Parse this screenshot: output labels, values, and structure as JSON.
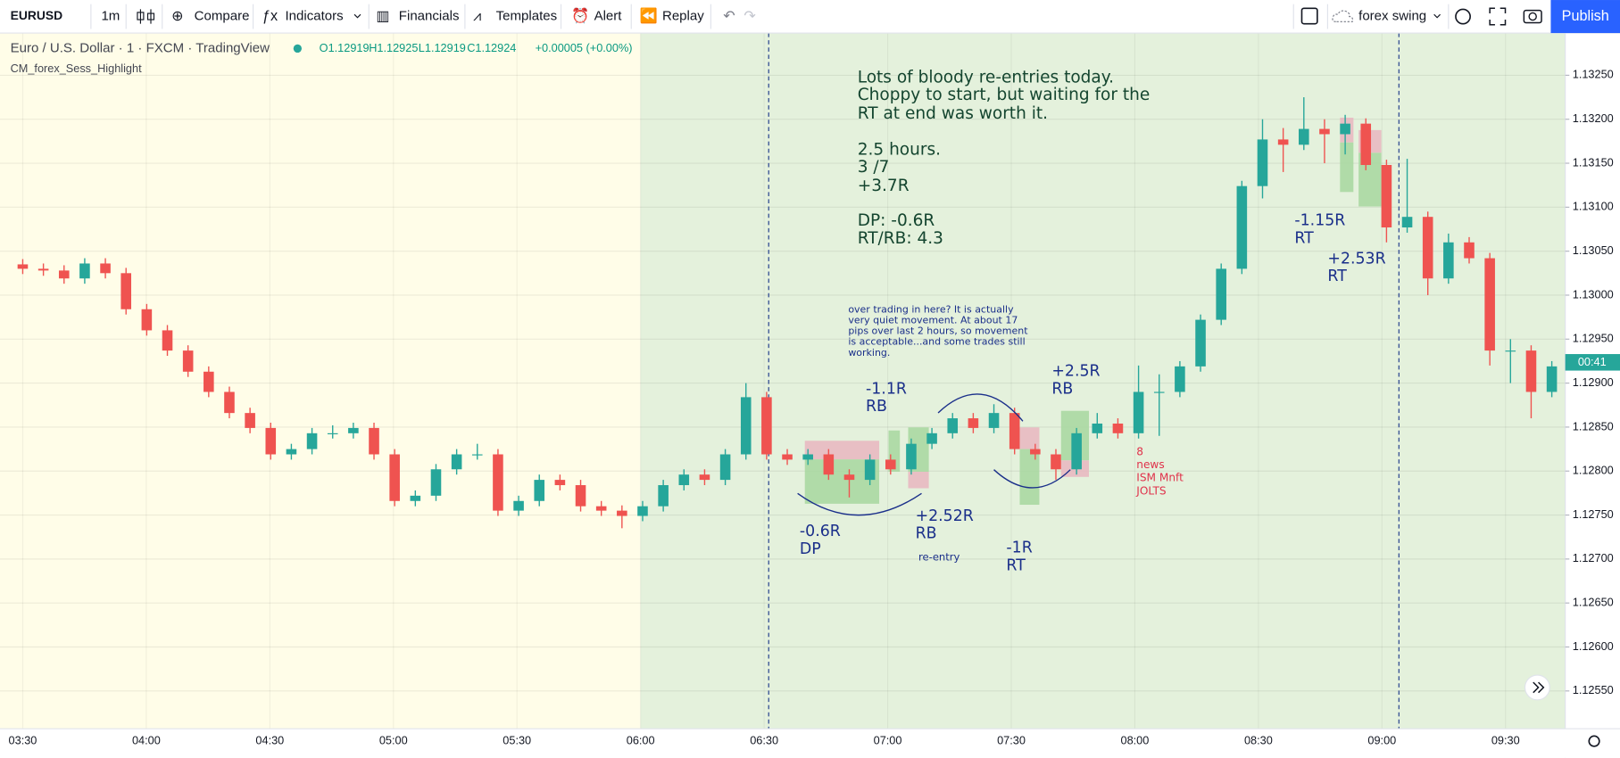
{
  "toolbar": {
    "symbol": "EURUSD",
    "interval": "1m",
    "buttons": [
      "Compare",
      "Indicators",
      "Financials",
      "Templates",
      "Alert",
      "Replay"
    ],
    "layout": "forex swing",
    "publish": "Publish"
  },
  "legend": {
    "title": "Euro / U.S. Dollar · 1 · FXCM · TradingView",
    "ohlc": [
      "O1.12919",
      "H1.12925",
      "L1.12919",
      "C1.12924",
      "+0.00005 (+0.00%)"
    ],
    "indicator": "CM_forex_Sess_Highlight"
  },
  "chart_data": {
    "type": "candlestick",
    "up_color": "#26a69a",
    "down_color": "#ef5350",
    "candles": {
      "open": [
        1.13035,
        1.1303,
        1.13028,
        1.13019,
        1.13036,
        1.13025,
        1.12984,
        1.1296,
        1.12937,
        1.12913,
        1.1289,
        1.12866,
        1.12849,
        1.12819,
        1.12825,
        1.12843,
        1.12843,
        1.12849,
        1.12819,
        1.12766,
        1.12772,
        1.12802,
        1.12819,
        1.12819,
        1.12755,
        1.12766,
        1.1279,
        1.12784,
        1.1276,
        1.12755,
        1.12749,
        1.1276,
        1.12784,
        1.12796,
        1.1279,
        1.12819,
        1.12884,
        1.12819,
        1.12813,
        1.12819,
        1.12796,
        1.1279,
        1.12813,
        1.12802,
        1.12831,
        1.12843,
        1.1286,
        1.12849,
        1.12866,
        1.12825,
        1.12819,
        1.12802,
        1.12843,
        1.12854,
        1.12843,
        1.1289,
        1.1289,
        1.12919,
        1.12972,
        1.1303,
        1.13124,
        1.13177,
        1.13171,
        1.13189,
        1.13183,
        1.13195,
        1.13148,
        1.13077,
        1.13089,
        1.13019,
        1.1306,
        1.13042,
        1.12937,
        1.12937,
        1.1289
      ],
      "high": [
        1.13041,
        1.13036,
        1.13034,
        1.13042,
        1.13042,
        1.13031,
        1.1299,
        1.12966,
        1.12943,
        1.12919,
        1.12896,
        1.12872,
        1.12855,
        1.12831,
        1.12849,
        1.12852,
        1.12855,
        1.12855,
        1.12825,
        1.12778,
        1.12808,
        1.12825,
        1.12831,
        1.12825,
        1.12772,
        1.12796,
        1.12796,
        1.1279,
        1.12766,
        1.12761,
        1.12766,
        1.1279,
        1.12802,
        1.12802,
        1.12825,
        1.129,
        1.1289,
        1.12825,
        1.12825,
        1.12825,
        1.12802,
        1.12819,
        1.12819,
        1.12837,
        1.12849,
        1.12866,
        1.12866,
        1.12876,
        1.12872,
        1.12831,
        1.12825,
        1.12849,
        1.12866,
        1.1286,
        1.1292,
        1.1291,
        1.12925,
        1.12978,
        1.13036,
        1.1313,
        1.132,
        1.1319,
        1.13225,
        1.132,
        1.13205,
        1.13201,
        1.13154,
        1.13155,
        1.13095,
        1.1307,
        1.13066,
        1.13048,
        1.1295,
        1.12943,
        1.12925
      ],
      "low": [
        1.13024,
        1.13022,
        1.13013,
        1.13013,
        1.13019,
        1.12978,
        1.12954,
        1.12931,
        1.12907,
        1.12884,
        1.1286,
        1.12843,
        1.12813,
        1.12813,
        1.12819,
        1.12837,
        1.12837,
        1.12813,
        1.1276,
        1.1276,
        1.12766,
        1.12796,
        1.12813,
        1.12749,
        1.12749,
        1.1276,
        1.12778,
        1.12754,
        1.12749,
        1.12735,
        1.12743,
        1.12754,
        1.12778,
        1.12784,
        1.12784,
        1.12813,
        1.12813,
        1.12807,
        1.12807,
        1.1279,
        1.1277,
        1.12784,
        1.12796,
        1.12796,
        1.12825,
        1.12837,
        1.12843,
        1.12843,
        1.12819,
        1.12813,
        1.1279,
        1.12796,
        1.12837,
        1.12837,
        1.12837,
        1.1284,
        1.12884,
        1.12913,
        1.12966,
        1.13024,
        1.1311,
        1.1314,
        1.13165,
        1.1315,
        1.1316,
        1.13142,
        1.1306,
        1.13071,
        1.13,
        1.13013,
        1.13036,
        1.1292,
        1.129,
        1.1286,
        1.12884
      ],
      "close": [
        1.1303,
        1.13028,
        1.13019,
        1.13036,
        1.13025,
        1.12984,
        1.1296,
        1.12937,
        1.12913,
        1.1289,
        1.12866,
        1.12849,
        1.12819,
        1.12825,
        1.12843,
        1.12843,
        1.12849,
        1.12819,
        1.12766,
        1.12772,
        1.12802,
        1.12819,
        1.12819,
        1.12755,
        1.12766,
        1.1279,
        1.12784,
        1.1276,
        1.12755,
        1.12749,
        1.1276,
        1.12784,
        1.12796,
        1.1279,
        1.12819,
        1.12884,
        1.12819,
        1.12813,
        1.12819,
        1.12796,
        1.1279,
        1.12813,
        1.12802,
        1.12831,
        1.12843,
        1.1286,
        1.12849,
        1.12866,
        1.12825,
        1.12819,
        1.12802,
        1.12843,
        1.12854,
        1.12843,
        1.1289,
        1.1289,
        1.12919,
        1.12972,
        1.1303,
        1.13124,
        1.13177,
        1.13171,
        1.13189,
        1.13183,
        1.13195,
        1.13148,
        1.13077,
        1.13089,
        1.13019,
        1.1306,
        1.13042,
        1.12937,
        1.12937,
        1.1289,
        1.12919
      ]
    },
    "ylim": [
      1.12507,
      1.13298
    ],
    "yticks": [
      {
        "value": 1.1325,
        "label": "1.13250"
      },
      {
        "value": 1.132,
        "label": "1.13200"
      },
      {
        "value": 1.1315,
        "label": "1.13150"
      },
      {
        "value": 1.131,
        "label": "1.13100"
      },
      {
        "value": 1.1305,
        "label": "1.13050"
      },
      {
        "value": 1.13,
        "label": "1.13000"
      },
      {
        "value": 1.1295,
        "label": "1.12950"
      },
      {
        "value": 1.129,
        "label": "1.12900"
      },
      {
        "value": 1.1285,
        "label": "1.12850"
      },
      {
        "value": 1.128,
        "label": "1.12800"
      },
      {
        "value": 1.1275,
        "label": "1.12750"
      },
      {
        "value": 1.127,
        "label": "1.12700"
      },
      {
        "value": 1.1265,
        "label": "1.12650"
      },
      {
        "value": 1.126,
        "label": "1.12600"
      },
      {
        "value": 1.1255,
        "label": "1.12550"
      }
    ],
    "xticks": [
      "03:30",
      "04:00",
      "04:30",
      "05:00",
      "05:30",
      "06:00",
      "06:30",
      "07:00",
      "07:30",
      "08:00",
      "08:30",
      "09:00",
      "09:30"
    ],
    "grid": true,
    "price_badge": "00:41"
  },
  "annotations": {
    "summary": [
      "Lots of bloody re-entries today.",
      "Choppy to start, but waiting for the",
      "RT at end was worth it.",
      "2.5 hours.",
      "3 /7",
      "+3.7R",
      "DP: -0.6R",
      "RT/RB: 4.3"
    ],
    "note": [
      "over trading in here? It is actually",
      "very quiet movement. At about 17",
      "pips over last 2 hours, so movement",
      "is acceptable...and some trades still",
      "working."
    ],
    "trades": [
      [
        "-1.1R",
        "RB"
      ],
      [
        "+2.5R",
        "RB"
      ],
      [
        "-0.6R",
        "DP"
      ],
      [
        "+2.52R",
        "RB"
      ],
      [
        "-1R",
        "RT"
      ],
      [
        "-1.15R",
        "RT"
      ],
      [
        "+2.53R",
        "RT"
      ]
    ],
    "re_entry": "re-entry",
    "news": [
      "8",
      "news",
      "ISM Mnft",
      "JOLTS"
    ]
  }
}
